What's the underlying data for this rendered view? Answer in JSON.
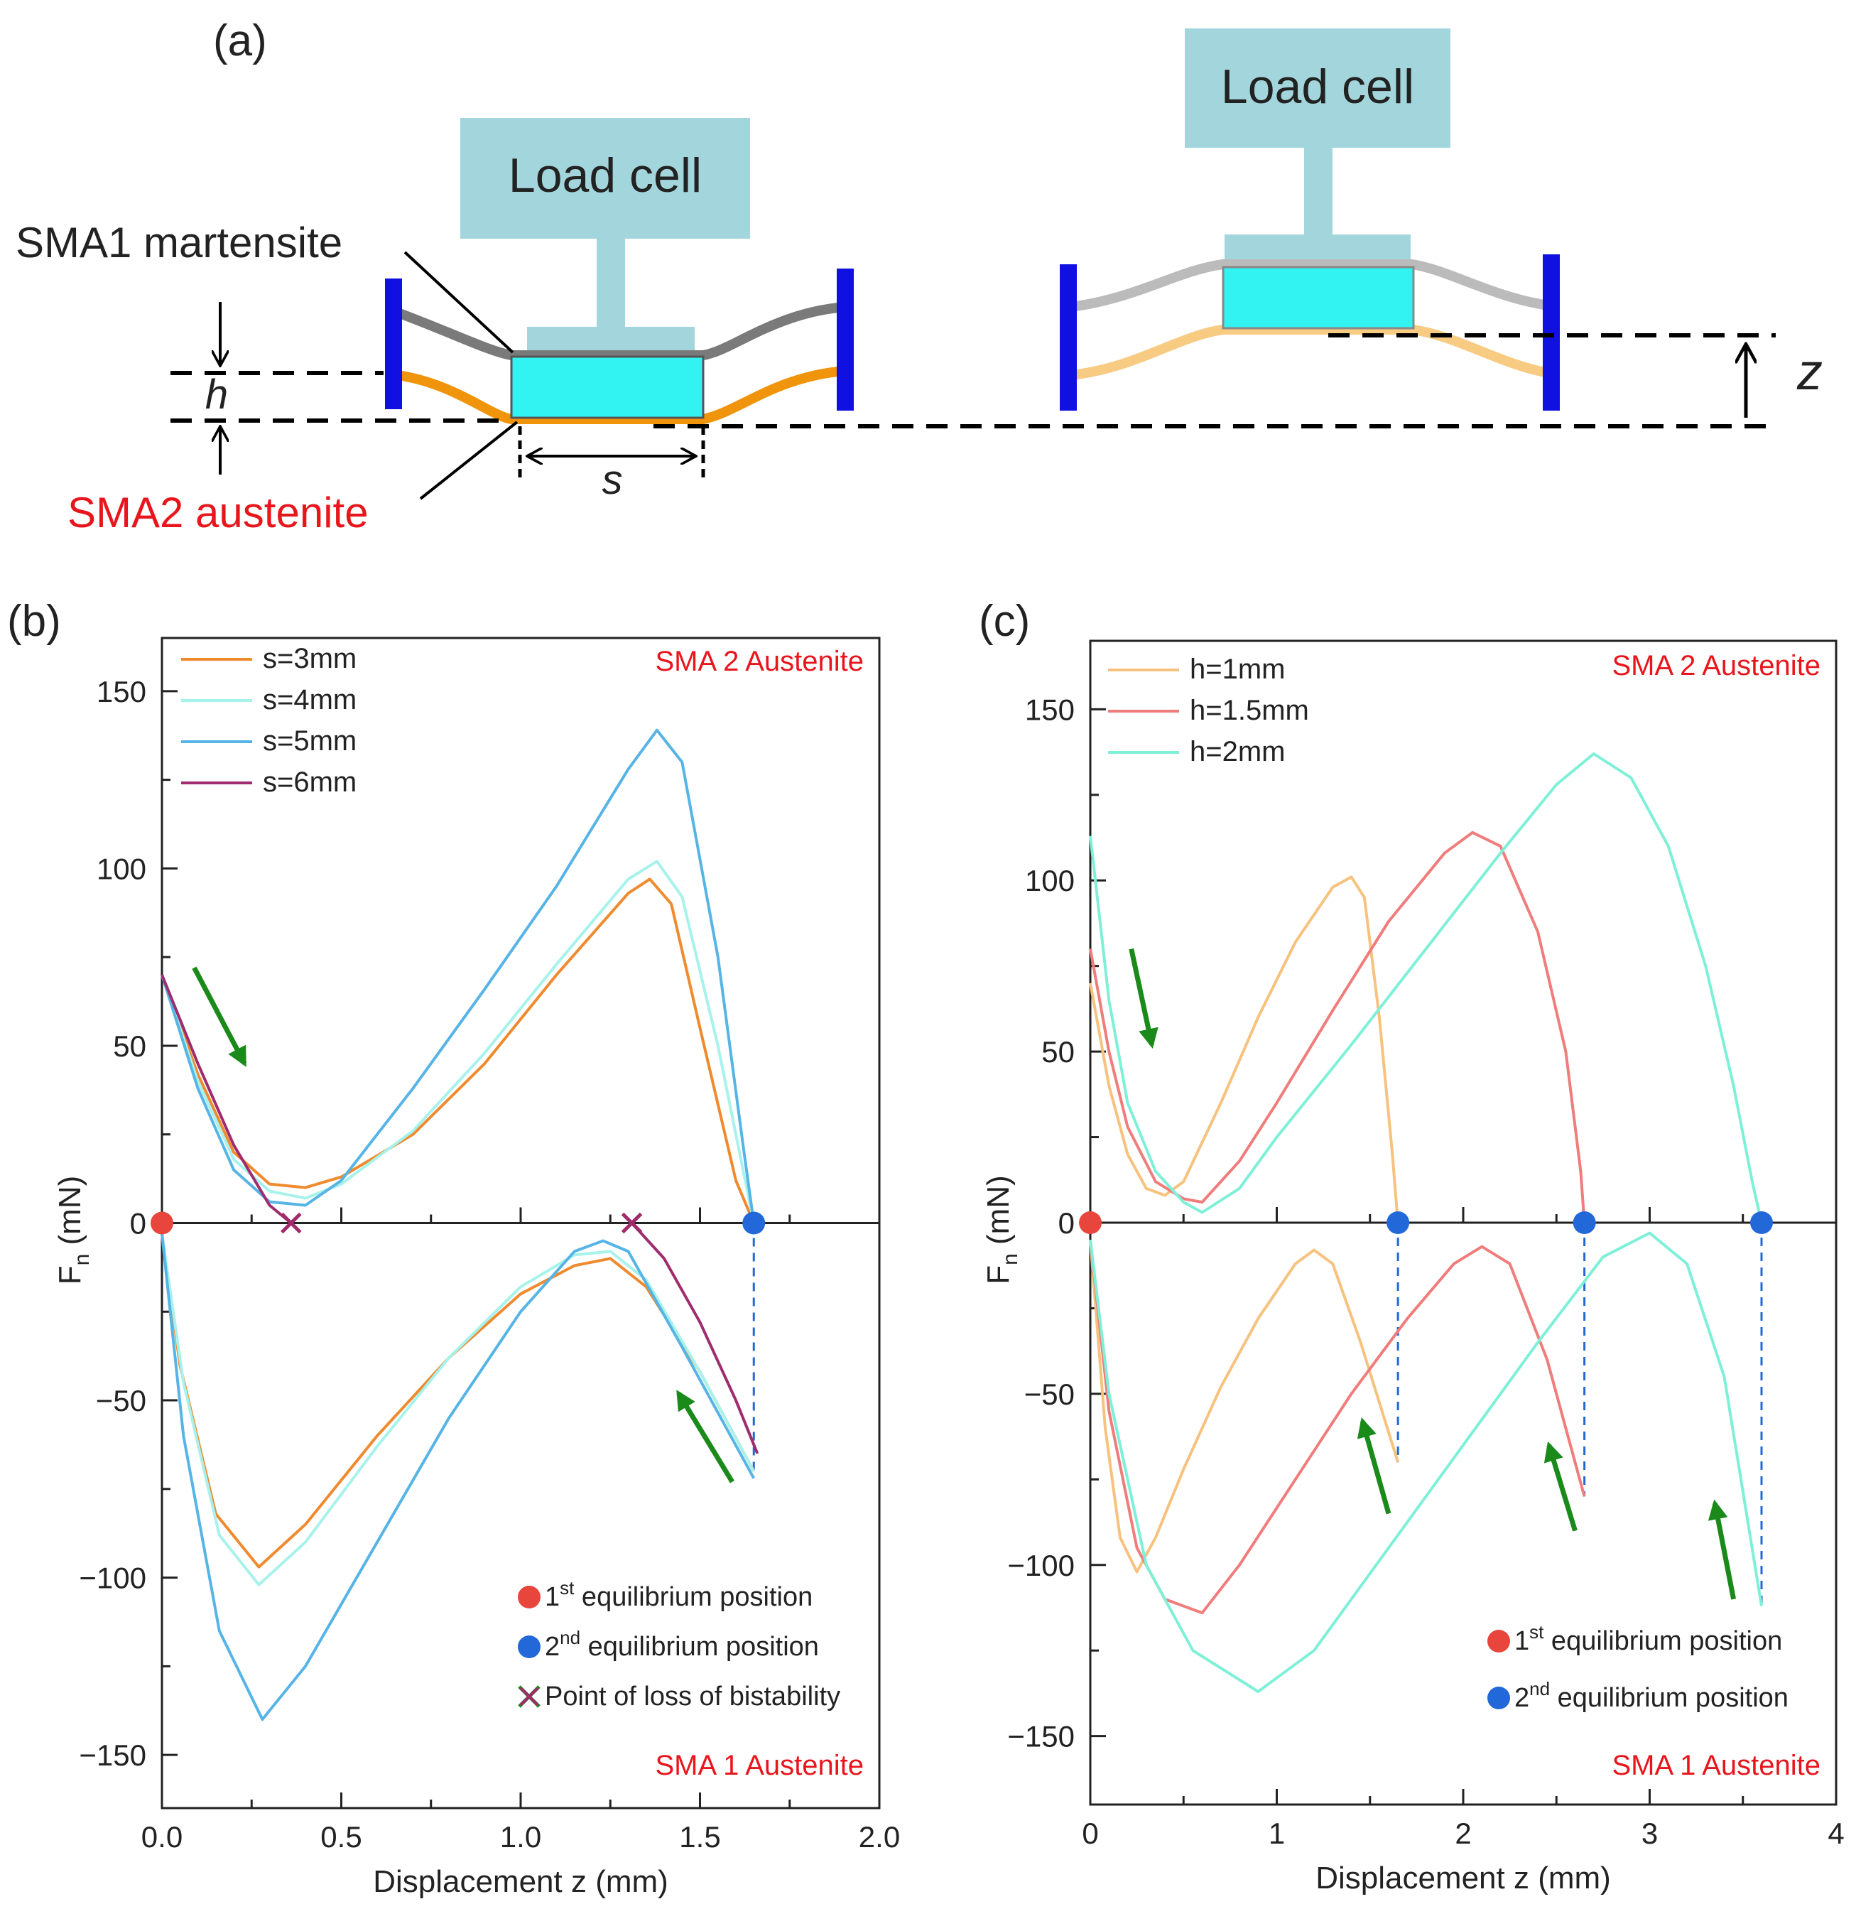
{
  "colors": {
    "loadcell": "#a3d6dc",
    "block": "#33f2f2",
    "wall": "#1010e0",
    "sma1_wire": "#7a7a7a",
    "sma1_wire_light": "#bbbbbb",
    "sma2_wire": "#f0940c",
    "sma2_wire_light": "#f8cb83",
    "arrow": "#1a8a1a",
    "eq1": "#e8453c",
    "eq2": "#2268d8",
    "cross": "#a02a6a",
    "red_text": "#e8161c"
  },
  "diagram": {
    "panel_label": "(a)",
    "load_cell_left": "Load cell",
    "load_cell_right": "Load cell",
    "sma1_label": "SMA1 martensite",
    "sma2_label": "SMA2 austenite",
    "h_label": "h",
    "s_label": "s",
    "z_label": "z"
  },
  "chart_data": [
    {
      "panel_label": "(b)",
      "type": "line",
      "xlabel": "Displacement z (mm)",
      "ylabel": "Fn (mN)",
      "ylabel_main": "F",
      "ylabel_sub": "n",
      "ylabel_unit": " (mN)",
      "xlim": [
        0,
        2.0
      ],
      "ylim": [
        -165,
        165
      ],
      "xticks": [
        0,
        0.5,
        1.0,
        1.5,
        2.0
      ],
      "xtick_labels": [
        "0.0",
        "0.5",
        "1.0",
        "1.5",
        "2.0"
      ],
      "yticks": [
        150,
        100,
        50,
        0,
        -50,
        -100,
        -150
      ],
      "ytick_labels": [
        "150",
        "100",
        "50",
        "0",
        "−50",
        "−100",
        "−150"
      ],
      "annotation_top": "SMA 2 Austenite",
      "annotation_bottom": "SMA 1 Austenite",
      "series": [
        {
          "name": "s=3mm",
          "color": "#ef8a2e",
          "upper": [
            [
              0,
              70
            ],
            [
              0.1,
              42
            ],
            [
              0.2,
              20
            ],
            [
              0.3,
              11
            ],
            [
              0.4,
              10
            ],
            [
              0.5,
              13
            ],
            [
              0.7,
              25
            ],
            [
              0.9,
              45
            ],
            [
              1.1,
              70
            ],
            [
              1.3,
              93
            ],
            [
              1.36,
              97
            ],
            [
              1.42,
              90
            ],
            [
              1.5,
              55
            ],
            [
              1.6,
              12
            ],
            [
              1.65,
              0
            ]
          ],
          "lower": [
            [
              0,
              -3
            ],
            [
              0.05,
              -40
            ],
            [
              0.15,
              -82
            ],
            [
              0.27,
              -97
            ],
            [
              0.4,
              -85
            ],
            [
              0.6,
              -60
            ],
            [
              0.8,
              -38
            ],
            [
              1.0,
              -20
            ],
            [
              1.15,
              -12
            ],
            [
              1.25,
              -10
            ],
            [
              1.35,
              -18
            ],
            [
              1.5,
              -42
            ],
            [
              1.65,
              -70
            ]
          ]
        },
        {
          "name": "s=4mm",
          "color": "#a8f2ec",
          "upper": [
            [
              0,
              70
            ],
            [
              0.1,
              40
            ],
            [
              0.2,
              18
            ],
            [
              0.3,
              9
            ],
            [
              0.4,
              7
            ],
            [
              0.5,
              11
            ],
            [
              0.7,
              26
            ],
            [
              0.9,
              48
            ],
            [
              1.1,
              73
            ],
            [
              1.3,
              97
            ],
            [
              1.38,
              102
            ],
            [
              1.45,
              92
            ],
            [
              1.55,
              50
            ],
            [
              1.62,
              15
            ],
            [
              1.65,
              0
            ]
          ],
          "lower": [
            [
              0,
              -3
            ],
            [
              0.06,
              -45
            ],
            [
              0.16,
              -88
            ],
            [
              0.27,
              -102
            ],
            [
              0.4,
              -90
            ],
            [
              0.6,
              -63
            ],
            [
              0.8,
              -38
            ],
            [
              1.0,
              -18
            ],
            [
              1.15,
              -9
            ],
            [
              1.25,
              -8
            ],
            [
              1.35,
              -16
            ],
            [
              1.5,
              -42
            ],
            [
              1.65,
              -70
            ]
          ]
        },
        {
          "name": "s=5mm",
          "color": "#56b4e6",
          "upper": [
            [
              0,
              70
            ],
            [
              0.1,
              38
            ],
            [
              0.2,
              15
            ],
            [
              0.3,
              6
            ],
            [
              0.4,
              5
            ],
            [
              0.5,
              12
            ],
            [
              0.7,
              38
            ],
            [
              0.9,
              66
            ],
            [
              1.1,
              95
            ],
            [
              1.3,
              128
            ],
            [
              1.38,
              139
            ],
            [
              1.45,
              130
            ],
            [
              1.55,
              75
            ],
            [
              1.62,
              22
            ],
            [
              1.65,
              0
            ]
          ],
          "lower": [
            [
              0,
              -3
            ],
            [
              0.06,
              -60
            ],
            [
              0.16,
              -115
            ],
            [
              0.28,
              -140
            ],
            [
              0.4,
              -125
            ],
            [
              0.6,
              -90
            ],
            [
              0.8,
              -55
            ],
            [
              1.0,
              -25
            ],
            [
              1.15,
              -8
            ],
            [
              1.23,
              -5
            ],
            [
              1.3,
              -8
            ],
            [
              1.45,
              -35
            ],
            [
              1.65,
              -72
            ]
          ]
        },
        {
          "name": "s=6mm",
          "color": "#9e2c6e",
          "upper": [
            [
              0,
              70
            ],
            [
              0.1,
              45
            ],
            [
              0.2,
              22
            ],
            [
              0.3,
              5
            ],
            [
              0.36,
              0
            ]
          ],
          "lower": [
            [
              1.31,
              0
            ],
            [
              1.4,
              -10
            ],
            [
              1.5,
              -28
            ],
            [
              1.6,
              -50
            ],
            [
              1.66,
              -65
            ]
          ]
        }
      ],
      "legend_markers": [
        "1st equilibrium position",
        "2nd equilibrium position",
        "Point of loss of bistability"
      ],
      "legend_markers_text": [
        {
          "pre": "1",
          "sup": "st",
          "post": " equilibrium position"
        },
        {
          "pre": "2",
          "sup": "nd",
          "post": " equilibrium position"
        },
        {
          "pre": "",
          "sup": "",
          "post": "Point of loss of bistability"
        }
      ],
      "eq1_points": [
        0
      ],
      "eq2_points": [
        1.65
      ],
      "loss_points": [
        0.36,
        1.31
      ],
      "dashed_drops": [
        {
          "x": 1.65,
          "to": -70
        }
      ],
      "green_arrows": [
        {
          "from": [
            0.09,
            72
          ],
          "to": [
            0.23,
            45
          ]
        },
        {
          "from": [
            1.59,
            -73
          ],
          "to": [
            1.44,
            -48
          ]
        }
      ]
    },
    {
      "panel_label": "(c)",
      "type": "line",
      "xlabel": "Displacement z (mm)",
      "ylabel": "Fn (mN)",
      "ylabel_main": "F",
      "ylabel_sub": "n",
      "ylabel_unit": " (mN)",
      "xlim": [
        0,
        4
      ],
      "ylim": [
        -170,
        170
      ],
      "xticks": [
        0,
        1,
        2,
        3,
        4
      ],
      "xtick_labels": [
        "0",
        "1",
        "2",
        "3",
        "4"
      ],
      "yticks": [
        150,
        100,
        50,
        0,
        -50,
        -100,
        -150
      ],
      "ytick_labels": [
        "150",
        "100",
        "50",
        "0",
        "−50",
        "−100",
        "−150"
      ],
      "annotation_top": "SMA 2 Austenite",
      "annotation_bottom": "SMA 1 Austenite",
      "series": [
        {
          "name": "h=1mm",
          "color": "#f7c27e",
          "upper": [
            [
              0,
              70
            ],
            [
              0.1,
              40
            ],
            [
              0.2,
              20
            ],
            [
              0.3,
              10
            ],
            [
              0.4,
              8
            ],
            [
              0.5,
              12
            ],
            [
              0.7,
              35
            ],
            [
              0.9,
              60
            ],
            [
              1.1,
              82
            ],
            [
              1.3,
              98
            ],
            [
              1.4,
              101
            ],
            [
              1.47,
              95
            ],
            [
              1.55,
              60
            ],
            [
              1.62,
              20
            ],
            [
              1.65,
              0
            ]
          ],
          "lower": [
            [
              0,
              -5
            ],
            [
              0.08,
              -60
            ],
            [
              0.16,
              -92
            ],
            [
              0.25,
              -102
            ],
            [
              0.35,
              -92
            ],
            [
              0.5,
              -72
            ],
            [
              0.7,
              -48
            ],
            [
              0.9,
              -28
            ],
            [
              1.1,
              -12
            ],
            [
              1.2,
              -8
            ],
            [
              1.3,
              -12
            ],
            [
              1.45,
              -35
            ],
            [
              1.65,
              -70
            ]
          ]
        },
        {
          "name": "h=1.5mm",
          "color": "#f07c7c",
          "upper": [
            [
              0,
              80
            ],
            [
              0.1,
              50
            ],
            [
              0.2,
              28
            ],
            [
              0.35,
              12
            ],
            [
              0.5,
              7
            ],
            [
              0.6,
              6
            ],
            [
              0.8,
              18
            ],
            [
              1.0,
              35
            ],
            [
              1.3,
              62
            ],
            [
              1.6,
              88
            ],
            [
              1.9,
              108
            ],
            [
              2.05,
              114
            ],
            [
              2.2,
              110
            ],
            [
              2.4,
              85
            ],
            [
              2.55,
              50
            ],
            [
              2.63,
              15
            ],
            [
              2.65,
              0
            ]
          ],
          "lower": [
            [
              0,
              -5
            ],
            [
              0.1,
              -55
            ],
            [
              0.25,
              -95
            ],
            [
              0.4,
              -110
            ],
            [
              0.6,
              -114
            ],
            [
              0.8,
              -100
            ],
            [
              1.1,
              -75
            ],
            [
              1.4,
              -50
            ],
            [
              1.7,
              -28
            ],
            [
              1.95,
              -12
            ],
            [
              2.1,
              -7
            ],
            [
              2.25,
              -12
            ],
            [
              2.45,
              -40
            ],
            [
              2.65,
              -80
            ]
          ]
        },
        {
          "name": "h=2mm",
          "color": "#7ff0d8",
          "upper": [
            [
              0,
              113
            ],
            [
              0.1,
              65
            ],
            [
              0.2,
              35
            ],
            [
              0.35,
              15
            ],
            [
              0.5,
              6
            ],
            [
              0.6,
              3
            ],
            [
              0.8,
              10
            ],
            [
              1.0,
              25
            ],
            [
              1.4,
              52
            ],
            [
              1.8,
              80
            ],
            [
              2.2,
              108
            ],
            [
              2.5,
              128
            ],
            [
              2.7,
              137
            ],
            [
              2.9,
              130
            ],
            [
              3.1,
              110
            ],
            [
              3.3,
              75
            ],
            [
              3.45,
              40
            ],
            [
              3.55,
              12
            ],
            [
              3.6,
              0
            ]
          ],
          "lower": [
            [
              0,
              -5
            ],
            [
              0.1,
              -50
            ],
            [
              0.3,
              -100
            ],
            [
              0.55,
              -125
            ],
            [
              0.9,
              -137
            ],
            [
              1.2,
              -125
            ],
            [
              1.6,
              -95
            ],
            [
              2.0,
              -65
            ],
            [
              2.4,
              -35
            ],
            [
              2.75,
              -10
            ],
            [
              3.0,
              -3
            ],
            [
              3.2,
              -12
            ],
            [
              3.4,
              -45
            ],
            [
              3.6,
              -112
            ]
          ]
        }
      ],
      "legend_markers": [
        "1st equilibrium position",
        "2nd equilibrium position"
      ],
      "legend_markers_text": [
        {
          "pre": "1",
          "sup": "st",
          "post": " equilibrium position"
        },
        {
          "pre": "2",
          "sup": "nd",
          "post": " equilibrium position"
        }
      ],
      "eq1_points": [
        0
      ],
      "eq2_points": [
        1.65,
        2.65,
        3.6
      ],
      "loss_points": [],
      "dashed_drops": [
        {
          "x": 1.65,
          "to": -70
        },
        {
          "x": 2.65,
          "to": -80
        },
        {
          "x": 3.6,
          "to": -112
        }
      ],
      "green_arrows": [
        {
          "from": [
            0.22,
            80
          ],
          "to": [
            0.33,
            52
          ]
        },
        {
          "from": [
            1.6,
            -85
          ],
          "to": [
            1.46,
            -58
          ]
        },
        {
          "from": [
            2.6,
            -90
          ],
          "to": [
            2.46,
            -65
          ]
        },
        {
          "from": [
            3.45,
            -110
          ],
          "to": [
            3.35,
            -82
          ]
        }
      ]
    }
  ]
}
